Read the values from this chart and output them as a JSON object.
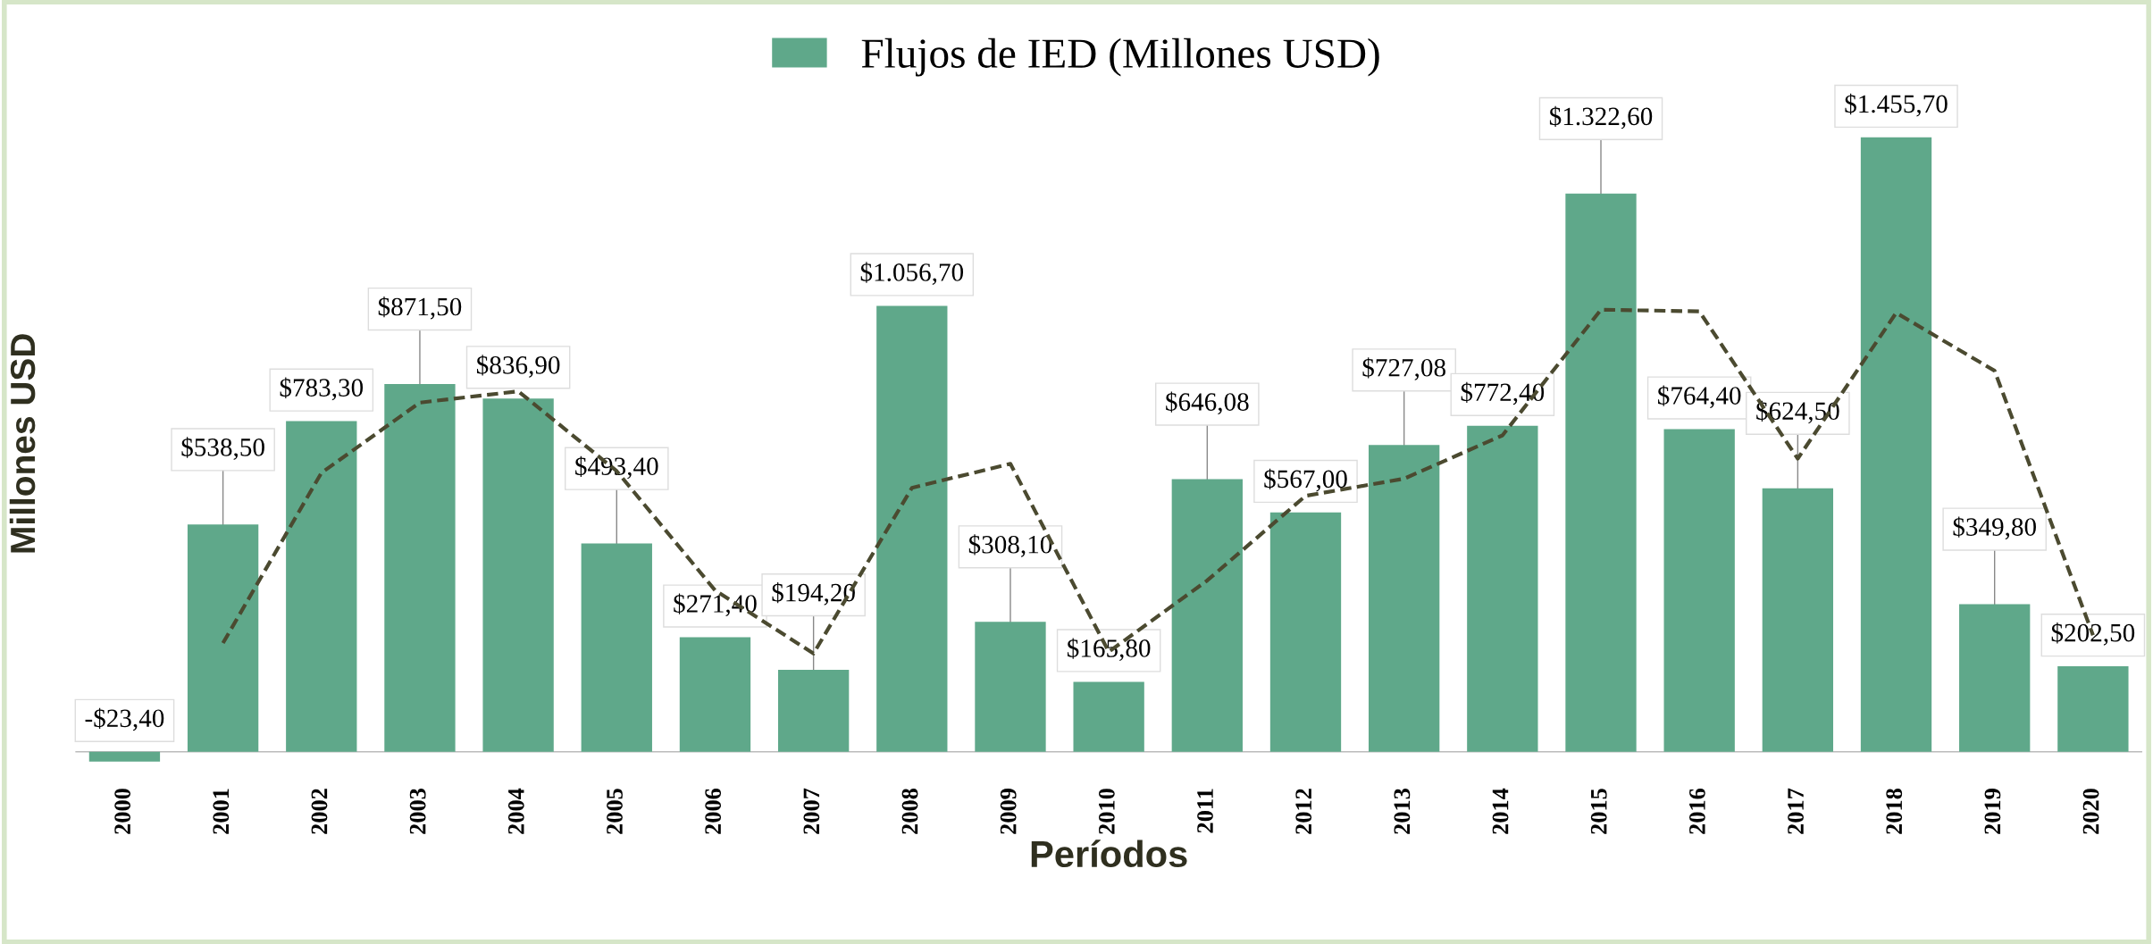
{
  "chart_data": {
    "type": "bar",
    "xlabel": "Períodos",
    "ylabel": "Millones USD",
    "categories": [
      "2000",
      "2001",
      "2002",
      "2003",
      "2004",
      "2005",
      "2006",
      "2007",
      "2008",
      "2009",
      "2010",
      "2011",
      "2012",
      "2013",
      "2014",
      "2015",
      "2016",
      "2017",
      "2018",
      "2019",
      "2020"
    ],
    "grid": false,
    "legend": "top",
    "tick_labels": "x",
    "series": [
      {
        "name": "Flujos de IED (Millones USD)",
        "color": "#5fa88a",
        "values": [
          -23.4,
          538.5,
          783.3,
          871.5,
          836.9,
          493.4,
          271.4,
          194.2,
          1056.7,
          308.1,
          165.8,
          646.08,
          567.0,
          727.08,
          772.4,
          1322.6,
          764.4,
          624.5,
          1455.7,
          349.8,
          202.5
        ],
        "value_labels": [
          "-$23,40",
          "$538,50",
          "$783,30",
          "$871,50",
          "$836,90",
          "$493,40",
          "$271,40",
          "$194,20",
          "$1.056,70",
          "$308,10",
          "$165,80",
          "$646,08",
          "$567,00",
          "$727,08",
          "$772,40",
          "$1.322,60",
          "$764,40",
          "$624,50",
          "$1.455,70",
          "$349,80",
          "$202,50"
        ]
      },
      {
        "type": "line",
        "color": "#4b4a30",
        "line_style": "dashed",
        "marker": "none",
        "values": [
          null,
          257.55,
          660.9,
          827.4,
          854.2,
          665.15,
          382.4,
          232.8,
          625.45,
          682.4,
          236.95,
          405.94,
          606.54,
          647.04,
          749.74,
          1047.5,
          1043.5,
          694.45,
          1040.1,
          902.75,
          276.15
        ]
      }
    ]
  }
}
